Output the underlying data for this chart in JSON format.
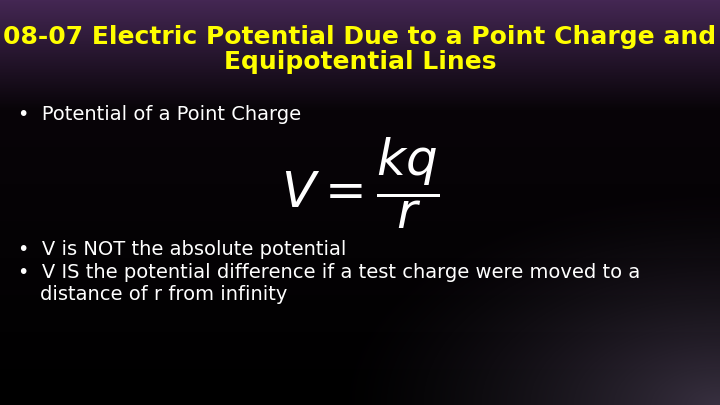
{
  "title_line1": "08-07 Electric Potential Due to a Point Charge and",
  "title_line2": "Equipotential Lines",
  "title_color": "#ffff00",
  "title_fontsize": 18,
  "bullet1": "Potential of a Point Charge",
  "formula": "$V = \\dfrac{kq}{r}$",
  "formula_fontsize": 36,
  "bullet2": "V is NOT the absolute potential",
  "bullet3_line1": "V IS the potential difference if a test charge were moved to a",
  "bullet3_line2": "distance of r from infinity",
  "bullet_color": "#ffffff",
  "bullet_fontsize": 14,
  "figsize": [
    7.2,
    4.05
  ],
  "dpi": 100
}
